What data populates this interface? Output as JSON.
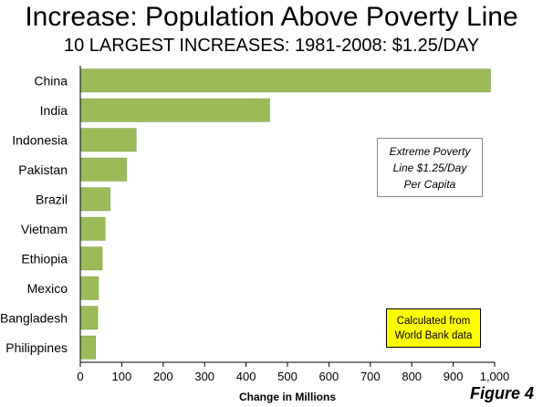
{
  "chart_data": {
    "type": "bar",
    "orientation": "horizontal",
    "title": "Increase: Population Above Poverty Line",
    "subtitle": "10 LARGEST INCREASES: 1981-2008: $1.25/DAY",
    "categories": [
      "China",
      "India",
      "Indonesia",
      "Pakistan",
      "Brazil",
      "Vietnam",
      "Ethiopia",
      "Mexico",
      "Bangladesh",
      "Philippines"
    ],
    "values": [
      990,
      457,
      135,
      112,
      72,
      60,
      53,
      44,
      42,
      37
    ],
    "xlabel": "Change in Millions",
    "ylabel": "",
    "xlim": [
      0,
      1000
    ],
    "xticks": [
      "0",
      "100",
      "200",
      "300",
      "400",
      "500",
      "600",
      "700",
      "800",
      "900",
      "1,000"
    ],
    "bar_color": "#9bbb59",
    "bar_edge_color": "#7f9a48",
    "grid": false,
    "annotations": [
      "Extreme Poverty\nLine $1.25/Day\nPer Capita",
      "Calculated from\nWorld Bank data"
    ]
  },
  "figure_label": "Figure 4",
  "colors": {
    "note_highlight": "#ffff00"
  }
}
